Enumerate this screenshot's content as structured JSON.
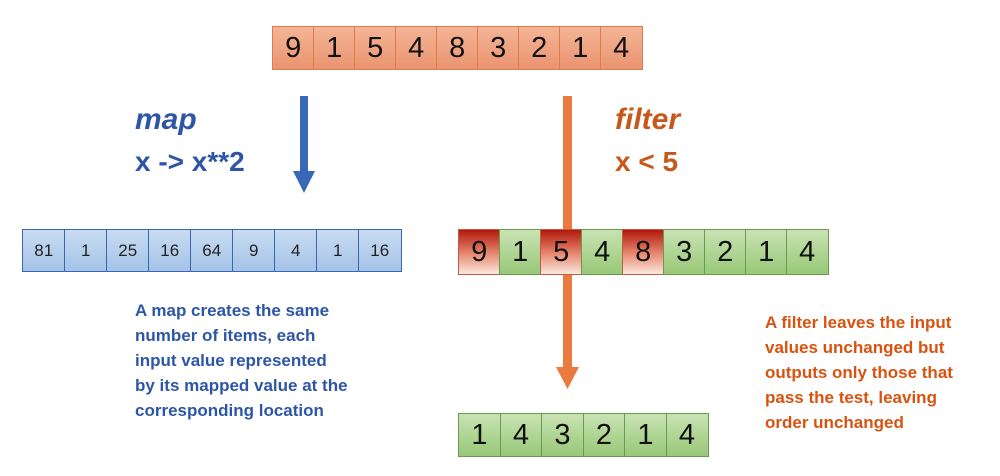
{
  "input_values": [
    "9",
    "1",
    "5",
    "4",
    "8",
    "3",
    "2",
    "1",
    "4"
  ],
  "map": {
    "title": "map",
    "expression": "x -> x**2",
    "output_values": [
      "81",
      "1",
      "25",
      "16",
      "64",
      "9",
      "4",
      "1",
      "16"
    ],
    "description": "A map creates the same\nnumber of items, each\ninput value represented\nby its mapped value at the\ncorresponding location",
    "color": "#2d56a6"
  },
  "filter": {
    "title": "filter",
    "expression": "x < 5",
    "marked_values": [
      "9",
      "1",
      "5",
      "4",
      "8",
      "3",
      "2",
      "1",
      "4"
    ],
    "rejected_indices": [
      0,
      2,
      4
    ],
    "output_values": [
      "1",
      "4",
      "3",
      "2",
      "1",
      "4"
    ],
    "description": "A filter leaves the input\nvalues unchanged but\noutputs only those that\npass the test, leaving\norder unchanged",
    "color": "#c5581a"
  }
}
